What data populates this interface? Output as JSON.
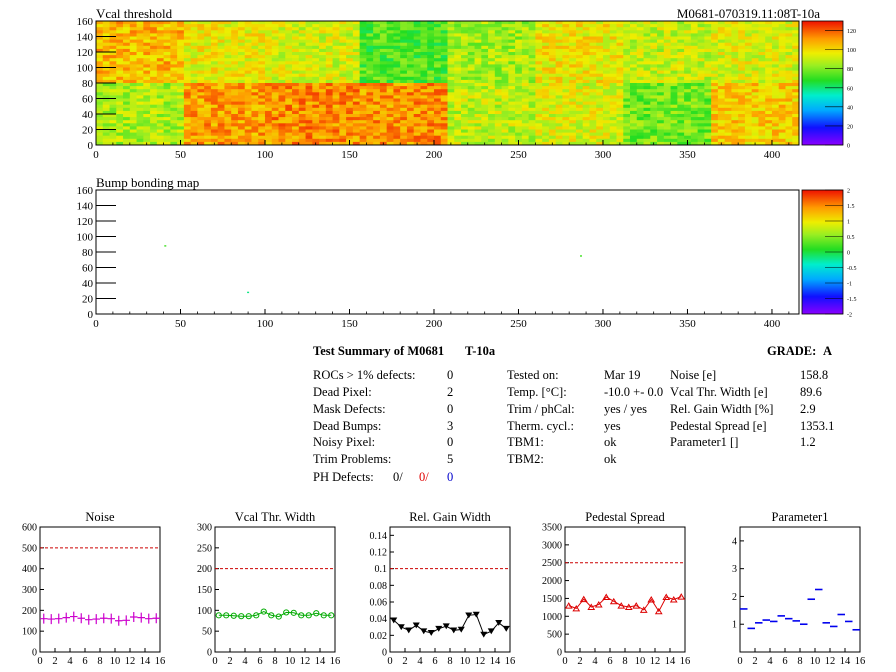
{
  "colors": {
    "noise": "#cc00cc",
    "vcal_width": "#00aa00",
    "gain_width": "#000000",
    "pedestal": "#dd0000",
    "parameter1": "#0000ee",
    "limit_line": "#cc0000"
  },
  "heatmaps": {
    "vcal": {
      "title": "Vcal threshold",
      "right_label": "M0681-070319.11:08T-10a",
      "x_ticks": [
        "0",
        "50",
        "100",
        "150",
        "200",
        "250",
        "300",
        "350",
        "400"
      ],
      "y_ticks": [
        "0",
        "20",
        "40",
        "60",
        "80",
        "100",
        "120",
        "140",
        "160"
      ],
      "z_ticks": [
        "0",
        "20",
        "40",
        "60",
        "80",
        "100",
        "120"
      ],
      "xlim": [
        0,
        416
      ],
      "ylim": [
        0,
        160
      ],
      "zlim": [
        0,
        130
      ],
      "roc_means_top": [
        106,
        96,
        92,
        73,
        85,
        97,
        90,
        93
      ],
      "roc_means_bottom": [
        86,
        110,
        113,
        112,
        89,
        93,
        78,
        102
      ]
    },
    "bump": {
      "title": "Bump bonding map",
      "x_ticks": [
        "0",
        "50",
        "100",
        "150",
        "200",
        "250",
        "300",
        "350",
        "400"
      ],
      "y_ticks": [
        "0",
        "20",
        "40",
        "60",
        "80",
        "100",
        "120",
        "140",
        "160"
      ],
      "z_ticks": [
        "2",
        "1.5",
        "1",
        "0.5",
        "0",
        "-0.5",
        "-1",
        "-1.5",
        "-2"
      ],
      "xlim": [
        0,
        416
      ],
      "ylim": [
        0,
        160
      ],
      "zlim": [
        -2,
        2
      ],
      "points": [
        [
          41,
          88,
          0.2
        ],
        [
          90,
          28,
          -0.2
        ],
        [
          287,
          75,
          0.2
        ]
      ]
    }
  },
  "summary": {
    "title": "Test Summary of M0681",
    "temp_label": "T-10a",
    "grade_label": "GRADE:",
    "grade": "A",
    "left": [
      {
        "label": "ROCs > 1% defects:",
        "value": "0"
      },
      {
        "label": "Dead Pixel:",
        "value": "2"
      },
      {
        "label": "Mask Defects:",
        "value": "0"
      },
      {
        "label": "Dead Bumps:",
        "value": "3"
      },
      {
        "label": "Noisy Pixel:",
        "value": "0"
      },
      {
        "label": "Trim Problems:",
        "value": "5"
      }
    ],
    "ph_label": "PH Defects:",
    "ph_values": [
      "0/",
      "0/",
      "0"
    ],
    "middle": [
      {
        "label": "Tested on:",
        "value": "Mar 19"
      },
      {
        "label": "Temp. [°C]:",
        "value": "-10.0 +- 0.0"
      },
      {
        "label": "Trim / phCal:",
        "value": "yes / yes"
      },
      {
        "label": "Therm. cycl.:",
        "value": "yes"
      },
      {
        "label": "TBM1:",
        "value": "ok"
      },
      {
        "label": "TBM2:",
        "value": "ok"
      }
    ],
    "right": [
      {
        "label": "Noise [e]",
        "value": "158.8"
      },
      {
        "label": "Vcal Thr. Width [e]",
        "value": "89.6"
      },
      {
        "label": "Rel. Gain Width [%]",
        "value": "2.9"
      },
      {
        "label": "Pedestal Spread [e]",
        "value": "1353.1"
      },
      {
        "label": "Parameter1 []",
        "value": "1.2"
      }
    ]
  },
  "chart_data": [
    {
      "type": "scatter",
      "title": "Noise",
      "x": [
        0,
        1,
        2,
        3,
        4,
        5,
        6,
        7,
        8,
        9,
        10,
        11,
        12,
        13,
        14,
        15
      ],
      "values": [
        160,
        158,
        160,
        165,
        170,
        162,
        155,
        158,
        162,
        160,
        150,
        152,
        168,
        165,
        160,
        162
      ],
      "xlim": [
        0,
        16
      ],
      "ylim": [
        0,
        600
      ],
      "x_ticks": [
        "0",
        "2",
        "4",
        "6",
        "8",
        "10",
        "12",
        "14",
        "16"
      ],
      "y_ticks": [
        "0",
        "100",
        "200",
        "300",
        "400",
        "500",
        "600"
      ],
      "limit": 500
    },
    {
      "type": "line",
      "title": "Vcal Thr. Width",
      "x": [
        0,
        1,
        2,
        3,
        4,
        5,
        6,
        7,
        8,
        9,
        10,
        11,
        12,
        13,
        14,
        15
      ],
      "values": [
        88,
        88,
        87,
        86,
        86,
        88,
        97,
        88,
        85,
        95,
        94,
        88,
        88,
        93,
        88,
        88
      ],
      "xlim": [
        0,
        16
      ],
      "ylim": [
        0,
        300
      ],
      "x_ticks": [
        "0",
        "2",
        "4",
        "6",
        "8",
        "10",
        "12",
        "14",
        "16"
      ],
      "y_ticks": [
        "0",
        "50",
        "100",
        "150",
        "200",
        "250",
        "300"
      ],
      "limit": 200
    },
    {
      "type": "line",
      "title": "Rel. Gain Width",
      "x": [
        0,
        1,
        2,
        3,
        4,
        5,
        6,
        7,
        8,
        9,
        10,
        11,
        12,
        13,
        14,
        15
      ],
      "values": [
        0.038,
        0.03,
        0.026,
        0.032,
        0.025,
        0.023,
        0.028,
        0.031,
        0.026,
        0.027,
        0.044,
        0.045,
        0.021,
        0.025,
        0.035,
        0.028
      ],
      "xlim": [
        0,
        16
      ],
      "ylim": [
        0,
        0.15
      ],
      "x_ticks": [
        "0",
        "2",
        "4",
        "6",
        "8",
        "10",
        "12",
        "14",
        "16"
      ],
      "y_ticks": [
        "0",
        "0.02",
        "0.04",
        "0.06",
        "0.08",
        "0.1",
        "0.12",
        "0.14"
      ],
      "limit": 0.1
    },
    {
      "type": "line",
      "title": "Pedestal Spread",
      "x": [
        0,
        1,
        2,
        3,
        4,
        5,
        6,
        7,
        8,
        9,
        10,
        11,
        12,
        13,
        14,
        15
      ],
      "values": [
        1300,
        1220,
        1480,
        1260,
        1330,
        1540,
        1420,
        1300,
        1260,
        1300,
        1180,
        1470,
        1140,
        1540,
        1470,
        1550
      ],
      "xlim": [
        0,
        16
      ],
      "ylim": [
        0,
        3500
      ],
      "x_ticks": [
        "0",
        "2",
        "4",
        "6",
        "8",
        "10",
        "12",
        "14",
        "16"
      ],
      "y_ticks": [
        "0",
        "500",
        "1000",
        "1500",
        "2000",
        "2500",
        "3000",
        "3500"
      ],
      "limit": 2500
    },
    {
      "type": "scatter",
      "title": "Parameter1",
      "x": [
        0,
        1,
        2,
        3,
        4,
        5,
        6,
        7,
        8,
        9,
        10,
        11,
        12,
        13,
        14,
        15
      ],
      "values": [
        1.55,
        0.85,
        1.05,
        1.15,
        1.1,
        1.3,
        1.2,
        1.12,
        1.0,
        1.9,
        2.25,
        1.05,
        0.92,
        1.35,
        1.1,
        0.8
      ],
      "xlim": [
        0,
        16
      ],
      "ylim": [
        0,
        4.5
      ],
      "x_ticks": [
        "0",
        "2",
        "4",
        "6",
        "8",
        "10",
        "12",
        "14",
        "16"
      ],
      "y_ticks": [
        "1",
        "2",
        "3",
        "4"
      ]
    }
  ]
}
